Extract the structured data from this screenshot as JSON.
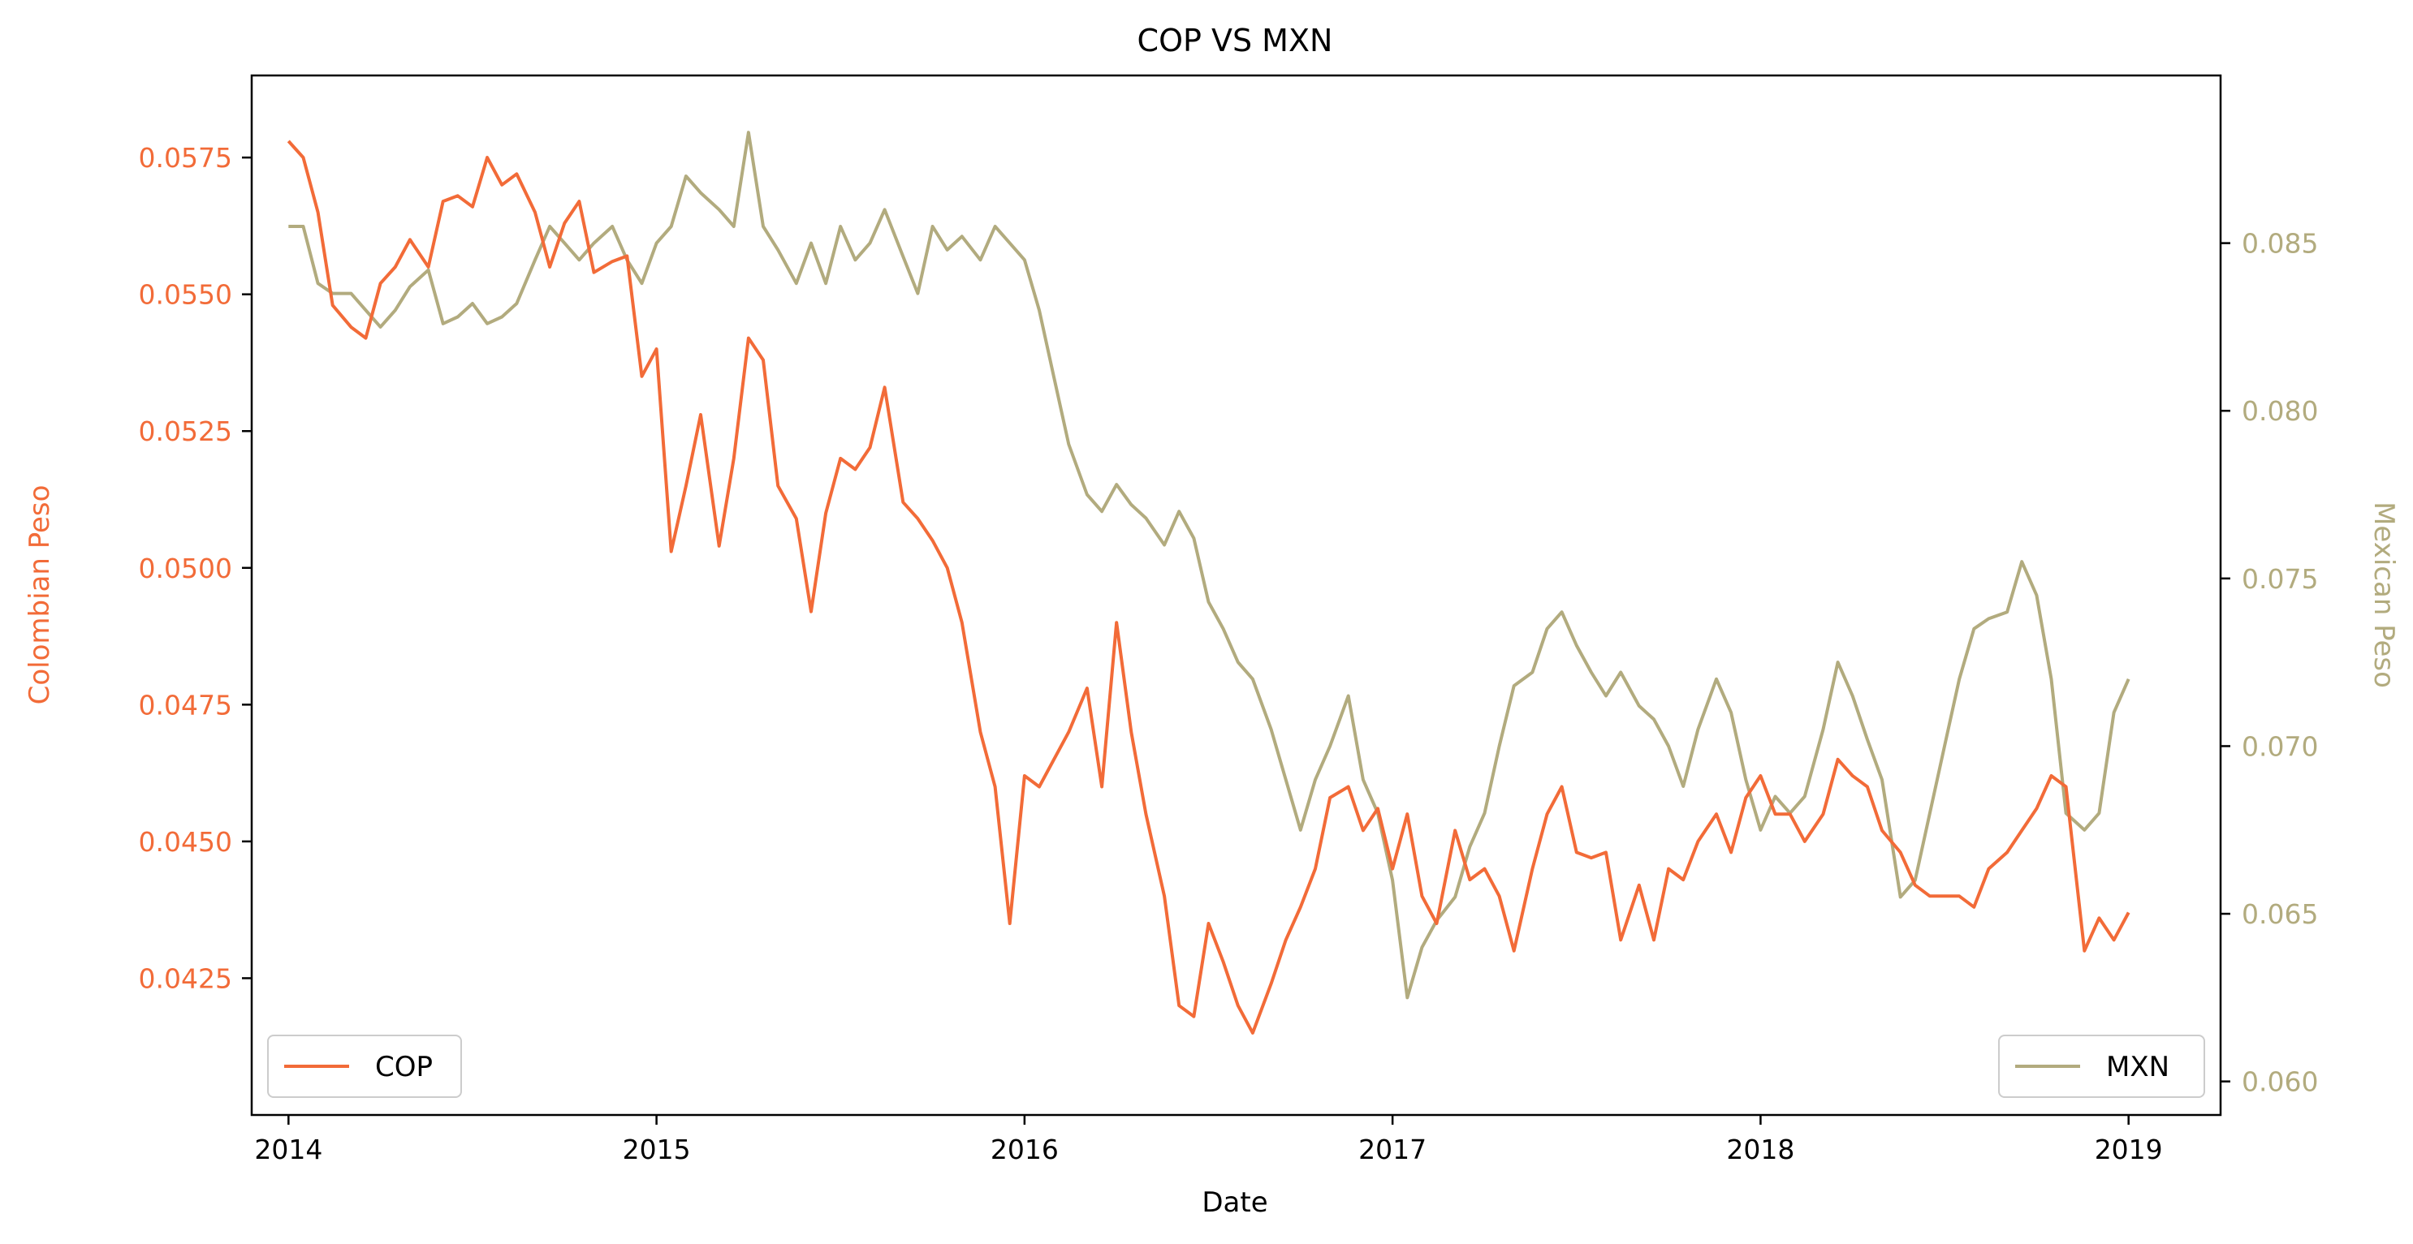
{
  "chart_data": {
    "type": "line",
    "title": "COP VS MXN",
    "xlabel": "Date",
    "ylabel_left": "Colombian Peso",
    "ylabel_right": "Mexican Peso",
    "xlim": [
      2013.9,
      2019.25
    ],
    "ylim_left": [
      0.04,
      0.059
    ],
    "ylim_right": [
      0.059,
      0.09
    ],
    "x_ticks": [
      2014,
      2015,
      2016,
      2017,
      2018,
      2019
    ],
    "x_tick_labels": [
      "2014",
      "2015",
      "2016",
      "2017",
      "2018",
      "2019"
    ],
    "y_left_ticks": [
      0.0425,
      0.045,
      0.0475,
      0.05,
      0.0525,
      0.055,
      0.0575
    ],
    "y_left_tick_labels": [
      "0.0425",
      "0.0450",
      "0.0475",
      "0.0500",
      "0.0525",
      "0.0550",
      "0.0575"
    ],
    "y_right_ticks": [
      0.06,
      0.065,
      0.07,
      0.075,
      0.08,
      0.085
    ],
    "y_right_tick_labels": [
      "0.060",
      "0.065",
      "0.070",
      "0.075",
      "0.080",
      "0.085"
    ],
    "grid": false,
    "legend_left_placement": "lower left",
    "legend_right_placement": "lower right",
    "colors": {
      "COP": "#f26b38",
      "MXN": "#b2ab7e",
      "axes": "#000000"
    },
    "series": [
      {
        "name": "COP",
        "axis": "left",
        "x": [
          2014.0,
          2014.04,
          2014.08,
          2014.12,
          2014.17,
          2014.21,
          2014.25,
          2014.29,
          2014.33,
          2014.38,
          2014.42,
          2014.46,
          2014.5,
          2014.54,
          2014.58,
          2014.62,
          2014.67,
          2014.71,
          2014.75,
          2014.79,
          2014.83,
          2014.88,
          2014.92,
          2014.96,
          2015.0,
          2015.04,
          2015.08,
          2015.12,
          2015.17,
          2015.21,
          2015.25,
          2015.29,
          2015.33,
          2015.38,
          2015.42,
          2015.46,
          2015.5,
          2015.54,
          2015.58,
          2015.62,
          2015.67,
          2015.71,
          2015.75,
          2015.79,
          2015.83,
          2015.88,
          2015.92,
          2015.96,
          2016.0,
          2016.04,
          2016.08,
          2016.12,
          2016.17,
          2016.21,
          2016.25,
          2016.29,
          2016.33,
          2016.38,
          2016.42,
          2016.46,
          2016.5,
          2016.54,
          2016.58,
          2016.62,
          2016.67,
          2016.71,
          2016.75,
          2016.79,
          2016.83,
          2016.88,
          2016.92,
          2016.96,
          2017.0,
          2017.04,
          2017.08,
          2017.12,
          2017.17,
          2017.21,
          2017.25,
          2017.29,
          2017.33,
          2017.38,
          2017.42,
          2017.46,
          2017.5,
          2017.54,
          2017.58,
          2017.62,
          2017.67,
          2017.71,
          2017.75,
          2017.79,
          2017.83,
          2017.88,
          2017.92,
          2017.96,
          2018.0,
          2018.04,
          2018.08,
          2018.12,
          2018.17,
          2018.21,
          2018.25,
          2018.29,
          2018.33,
          2018.38,
          2018.42,
          2018.46,
          2018.5,
          2018.54,
          2018.58,
          2018.62,
          2018.67,
          2018.71,
          2018.75,
          2018.79,
          2018.83,
          2018.88,
          2018.92,
          2018.96,
          2019.0
        ],
        "values": [
          0.0578,
          0.0575,
          0.0565,
          0.0548,
          0.0544,
          0.0542,
          0.0552,
          0.0555,
          0.056,
          0.0555,
          0.0567,
          0.0568,
          0.0566,
          0.0575,
          0.057,
          0.0572,
          0.0565,
          0.0555,
          0.0563,
          0.0567,
          0.0554,
          0.0556,
          0.0557,
          0.0535,
          0.054,
          0.0503,
          0.0515,
          0.0528,
          0.0504,
          0.052,
          0.0542,
          0.0538,
          0.0515,
          0.0509,
          0.0492,
          0.051,
          0.052,
          0.0518,
          0.0522,
          0.0533,
          0.0512,
          0.0509,
          0.0505,
          0.05,
          0.049,
          0.047,
          0.046,
          0.0435,
          0.0462,
          0.046,
          0.0465,
          0.047,
          0.0478,
          0.046,
          0.049,
          0.047,
          0.0455,
          0.044,
          0.042,
          0.0418,
          0.0435,
          0.0428,
          0.042,
          0.0415,
          0.0424,
          0.0432,
          0.0438,
          0.0445,
          0.0458,
          0.046,
          0.0452,
          0.0456,
          0.0445,
          0.0455,
          0.044,
          0.0435,
          0.0452,
          0.0443,
          0.0445,
          0.044,
          0.043,
          0.0445,
          0.0455,
          0.046,
          0.0448,
          0.0447,
          0.0448,
          0.0432,
          0.0442,
          0.0432,
          0.0445,
          0.0443,
          0.045,
          0.0455,
          0.0448,
          0.0458,
          0.0462,
          0.0455,
          0.0455,
          0.045,
          0.0455,
          0.0465,
          0.0462,
          0.046,
          0.0452,
          0.0448,
          0.0442,
          0.044,
          0.044,
          0.044,
          0.0438,
          0.0445,
          0.0448,
          0.0452,
          0.0456,
          0.0462,
          0.046,
          0.043,
          0.0436,
          0.0432,
          0.0437
        ]
      },
      {
        "name": "MXN",
        "axis": "right",
        "x": [
          2014.0,
          2014.04,
          2014.08,
          2014.12,
          2014.17,
          2014.21,
          2014.25,
          2014.29,
          2014.33,
          2014.38,
          2014.42,
          2014.46,
          2014.5,
          2014.54,
          2014.58,
          2014.62,
          2014.67,
          2014.71,
          2014.75,
          2014.79,
          2014.83,
          2014.88,
          2014.92,
          2014.96,
          2015.0,
          2015.04,
          2015.08,
          2015.12,
          2015.17,
          2015.21,
          2015.25,
          2015.29,
          2015.33,
          2015.38,
          2015.42,
          2015.46,
          2015.5,
          2015.54,
          2015.58,
          2015.62,
          2015.67,
          2015.71,
          2015.75,
          2015.79,
          2015.83,
          2015.88,
          2015.92,
          2015.96,
          2016.0,
          2016.04,
          2016.08,
          2016.12,
          2016.17,
          2016.21,
          2016.25,
          2016.29,
          2016.33,
          2016.38,
          2016.42,
          2016.46,
          2016.5,
          2016.54,
          2016.58,
          2016.62,
          2016.67,
          2016.71,
          2016.75,
          2016.79,
          2016.83,
          2016.88,
          2016.92,
          2016.96,
          2017.0,
          2017.04,
          2017.08,
          2017.12,
          2017.17,
          2017.21,
          2017.25,
          2017.29,
          2017.33,
          2017.38,
          2017.42,
          2017.46,
          2017.5,
          2017.54,
          2017.58,
          2017.62,
          2017.67,
          2017.71,
          2017.75,
          2017.79,
          2017.83,
          2017.88,
          2017.92,
          2017.96,
          2018.0,
          2018.04,
          2018.08,
          2018.12,
          2018.17,
          2018.21,
          2018.25,
          2018.29,
          2018.33,
          2018.38,
          2018.42,
          2018.46,
          2018.5,
          2018.54,
          2018.58,
          2018.62,
          2018.67,
          2018.71,
          2018.75,
          2018.79,
          2018.83,
          2018.88,
          2018.92,
          2018.96,
          2019.0
        ],
        "values": [
          0.0855,
          0.0855,
          0.0838,
          0.0835,
          0.0835,
          0.083,
          0.0825,
          0.083,
          0.0837,
          0.0842,
          0.0826,
          0.0828,
          0.0832,
          0.0826,
          0.0828,
          0.0832,
          0.0845,
          0.0855,
          0.085,
          0.0845,
          0.085,
          0.0855,
          0.0845,
          0.0838,
          0.085,
          0.0855,
          0.087,
          0.0865,
          0.086,
          0.0855,
          0.0883,
          0.0855,
          0.0848,
          0.0838,
          0.085,
          0.0838,
          0.0855,
          0.0845,
          0.085,
          0.086,
          0.0846,
          0.0835,
          0.0855,
          0.0848,
          0.0852,
          0.0845,
          0.0855,
          0.085,
          0.0845,
          0.083,
          0.081,
          0.079,
          0.0775,
          0.077,
          0.0778,
          0.0772,
          0.0768,
          0.076,
          0.077,
          0.0762,
          0.0743,
          0.0735,
          0.0725,
          0.072,
          0.0705,
          0.069,
          0.0675,
          0.069,
          0.07,
          0.0715,
          0.069,
          0.068,
          0.066,
          0.0625,
          0.064,
          0.0648,
          0.0655,
          0.067,
          0.068,
          0.07,
          0.0718,
          0.0722,
          0.0735,
          0.074,
          0.073,
          0.0722,
          0.0715,
          0.0722,
          0.0712,
          0.0708,
          0.07,
          0.0688,
          0.0705,
          0.072,
          0.071,
          0.069,
          0.0675,
          0.0685,
          0.068,
          0.0685,
          0.0705,
          0.0725,
          0.0715,
          0.0702,
          0.069,
          0.0655,
          0.066,
          0.068,
          0.07,
          0.072,
          0.0735,
          0.0738,
          0.074,
          0.0755,
          0.0745,
          0.072,
          0.068,
          0.0675,
          0.068,
          0.071,
          0.072
        ]
      }
    ]
  }
}
